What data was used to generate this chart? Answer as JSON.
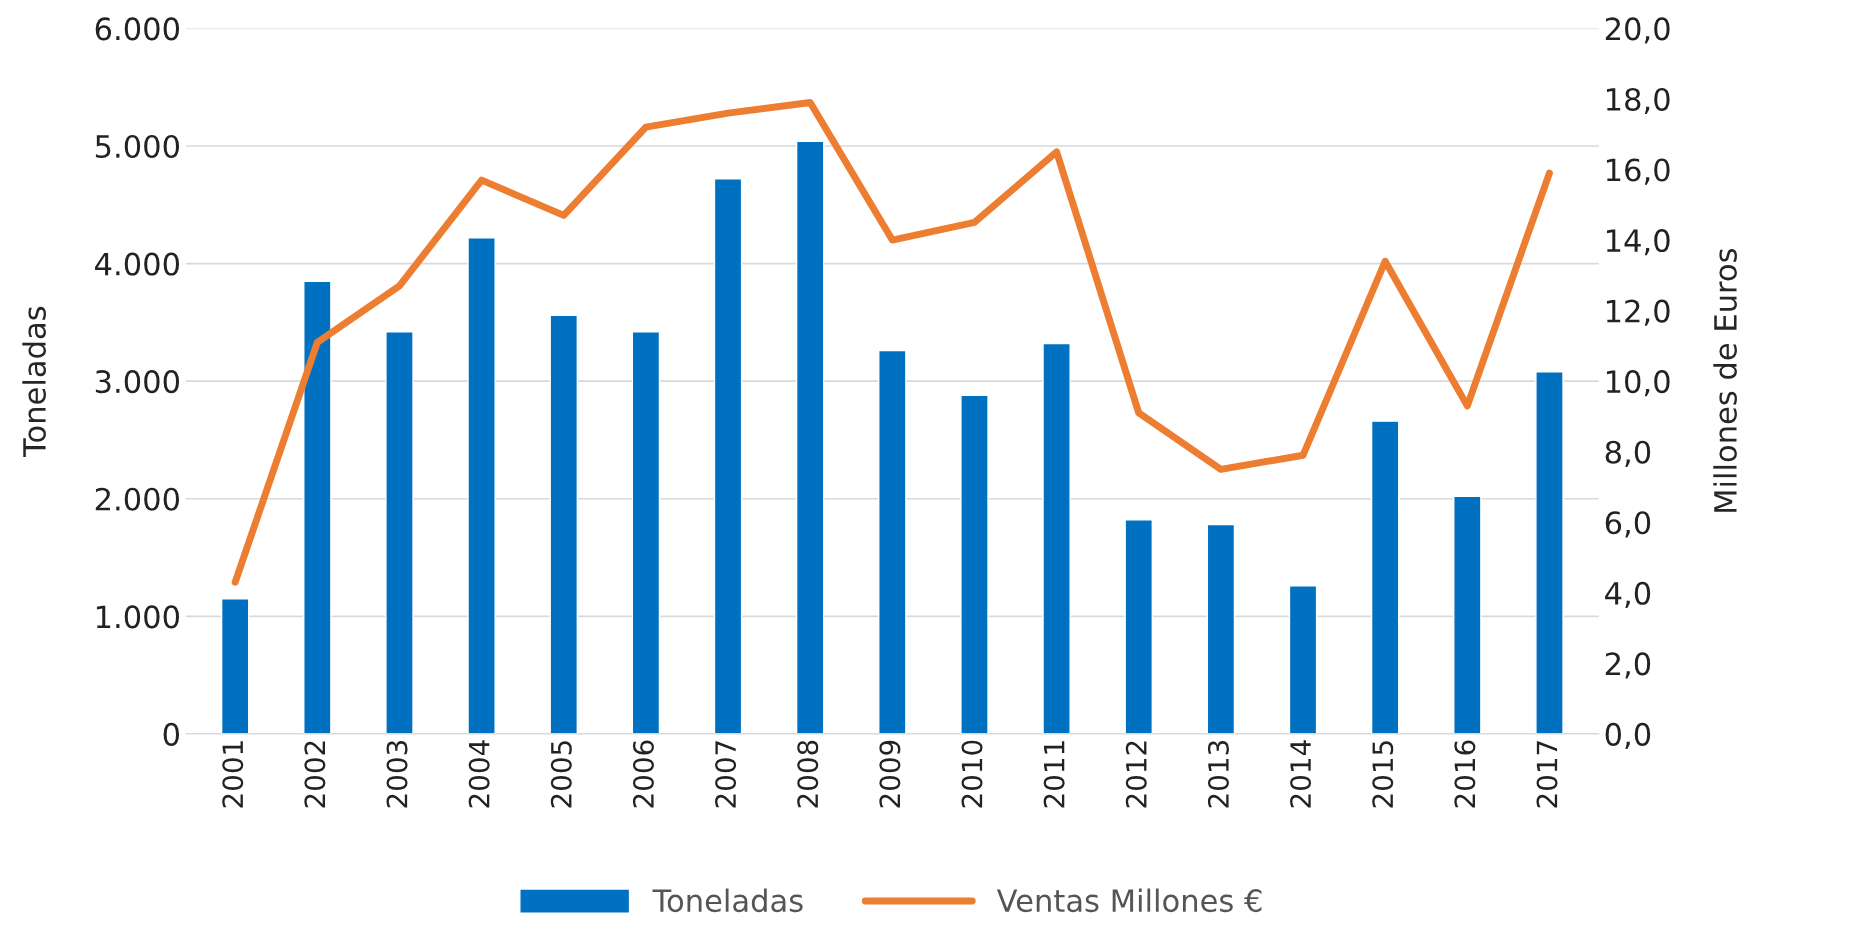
{
  "chart_data": {
    "type": "bar",
    "categories": [
      "2001",
      "2002",
      "2003",
      "2004",
      "2005",
      "2006",
      "2007",
      "2008",
      "2009",
      "2010",
      "2011",
      "2012",
      "2013",
      "2014",
      "2015",
      "2016",
      "2017"
    ],
    "ylabel": "Toneladas",
    "y2label": "Millones de Euros",
    "series": [
      {
        "name": "Toneladas",
        "color": "#0070c0",
        "values": [
          1150,
          3850,
          3420,
          4220,
          3560,
          3420,
          4720,
          5040,
          3260,
          2880,
          3320,
          1820,
          1780,
          1260,
          2660,
          2020,
          3080
        ]
      },
      {
        "name": "Ventas Millones €",
        "type": "line",
        "axis": "y2",
        "color": "#ed7d31",
        "values": [
          4.3,
          11.1,
          12.7,
          15.7,
          14.7,
          17.2,
          17.6,
          17.9,
          14.0,
          14.5,
          16.5,
          9.1,
          7.5,
          7.9,
          13.4,
          9.3,
          15.9
        ]
      }
    ],
    "ylim": [
      0,
      6000
    ],
    "yticks": [
      {
        "value": 0,
        "label": "0"
      },
      {
        "value": 1000,
        "label": "1.000"
      },
      {
        "value": 2000,
        "label": "2.000"
      },
      {
        "value": 3000,
        "label": "3.000"
      },
      {
        "value": 4000,
        "label": "4.000"
      },
      {
        "value": 5000,
        "label": "5.000"
      },
      {
        "value": 6000,
        "label": "6.000"
      }
    ],
    "y2lim": [
      0,
      20
    ],
    "y2ticks": [
      {
        "value": 0,
        "label": "0,0"
      },
      {
        "value": 2,
        "label": "2,0"
      },
      {
        "value": 4,
        "label": "4,0"
      },
      {
        "value": 6,
        "label": "6,0"
      },
      {
        "value": 8,
        "label": "8,0"
      },
      {
        "value": 10,
        "label": "10,0"
      },
      {
        "value": 12,
        "label": "12,0"
      },
      {
        "value": 14,
        "label": "14,0"
      },
      {
        "value": 16,
        "label": "16,0"
      },
      {
        "value": 18,
        "label": "18,0"
      },
      {
        "value": 20,
        "label": "20,0"
      }
    ],
    "grid": "y",
    "legend": "bottom"
  }
}
